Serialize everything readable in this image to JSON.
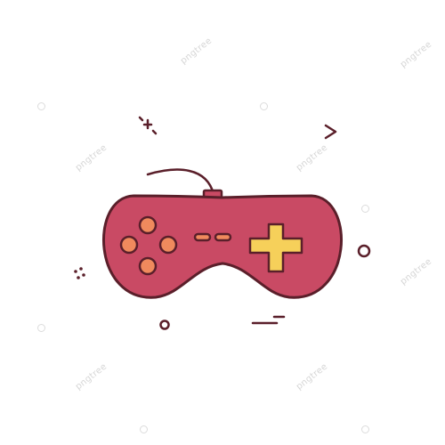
{
  "icon": {
    "name": "gamepad-icon",
    "colors": {
      "body": "#c94a64",
      "outline": "#5a1f2a",
      "buttons": "#f08a5d",
      "dpad": "#f6d05a"
    }
  },
  "watermark": {
    "text": "pngtree"
  },
  "decorations": [
    "sparkle-icon",
    "chevron-right-icon",
    "dots-icon",
    "circle-icon",
    "dash-icon"
  ]
}
